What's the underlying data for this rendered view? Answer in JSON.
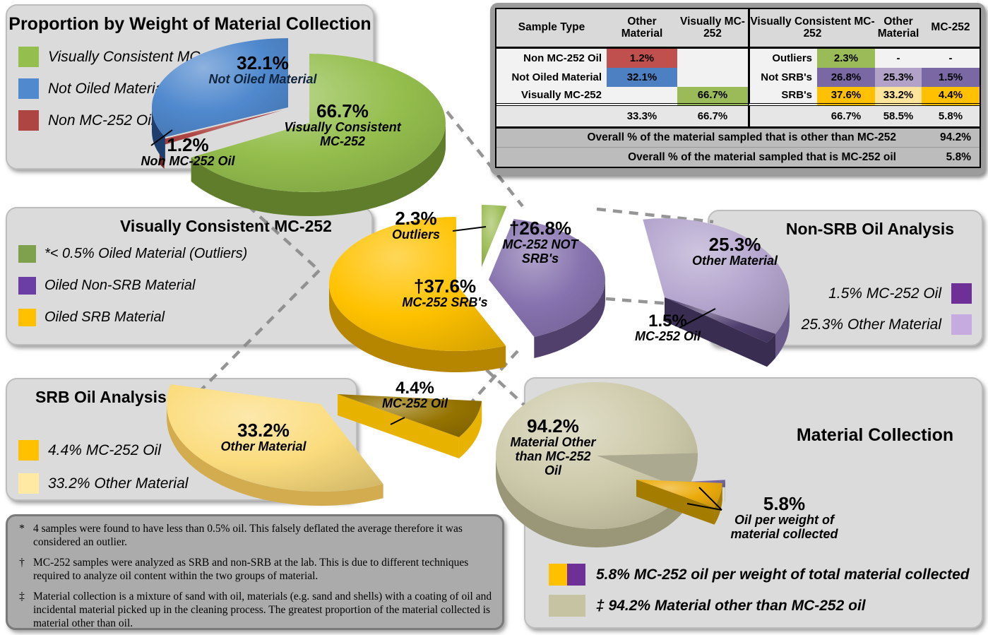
{
  "panels": {
    "proportion": {
      "title": "Proportion by Weight of Material Collection",
      "legend": [
        {
          "label": "Visually Consistent MC-252",
          "color": "#94BE4D"
        },
        {
          "label": "Not Oiled Material",
          "color": "#5089CE"
        },
        {
          "label": "Non MC-252 Oil",
          "color": "#AE4543"
        }
      ]
    },
    "visually_consistent": {
      "title": "Visually Consistent MC-252",
      "legend": [
        {
          "label": "*< 0.5% Oiled Material (Outliers)",
          "color": "#7FA04C"
        },
        {
          "label": "Oiled Non-SRB Material",
          "color": "#6B3EA5"
        },
        {
          "label": "Oiled SRB Material",
          "color": "#FFC000"
        }
      ]
    },
    "non_srb": {
      "title": "Non-SRB Oil Analysis",
      "legend": [
        {
          "label": "1.5% MC-252 Oil",
          "color": "#6E3096"
        },
        {
          "label": "25.3% Other Material",
          "color": "#C5ABE0"
        }
      ]
    },
    "srb": {
      "title": "SRB Oil Analysis",
      "legend": [
        {
          "label": "4.4% MC-252 Oil",
          "color": "#FFC000"
        },
        {
          "label": "33.2% Other Material",
          "color": "#FFE9A3"
        }
      ]
    },
    "material_collection": {
      "title": "Material Collection",
      "legend": [
        {
          "label": "5.8% MC-252 oil per weight of  total material collected",
          "colors": [
            "#FFC000",
            "#6E3096"
          ]
        },
        {
          "label": "‡ 94.2% Material other than MC-252 oil",
          "colors": [
            "#C6C3A2",
            "#C6C3A2"
          ]
        }
      ]
    },
    "footnotes": [
      {
        "symbol": "*",
        "text": "4 samples were found to have less than 0.5% oil. This falsely deflated the average therefore it was considered an outlier."
      },
      {
        "symbol": "†",
        "text": "MC-252 samples were analyzed as SRB and non-SRB at the lab. This is due to different techniques  required to analyze oil content within the two groups of material."
      },
      {
        "symbol": "‡",
        "text": "Material collection is a mixture of sand with oil, materials (e.g. sand and shells) with a coating of oil and incidental material picked up in the cleaning process. The greatest proportion of the material collected is material other than oil."
      }
    ]
  },
  "callouts": {
    "pie1_blue": {
      "pct": "32.1%",
      "name": "Not Oiled Material"
    },
    "pie1_green": {
      "pct": "66.7%",
      "name": "Visually Consistent MC-252"
    },
    "pie1_red": {
      "pct": "1.2%",
      "name": "Non MC-252 Oil"
    },
    "pie2_green": {
      "pct": "2.3%",
      "name": "Outliers"
    },
    "pie2_purple": {
      "pct": "†26.8%",
      "name": "MC-252 NOT SRB's"
    },
    "pie2_gold": {
      "pct": "†37.6%",
      "name": "MC-252 SRB's"
    },
    "pie3_light": {
      "pct": "25.3%",
      "name": "Other Material"
    },
    "pie3_dark": {
      "pct": "1.5%",
      "name": "MC-252 Oil"
    },
    "pie4_light": {
      "pct": "33.2%",
      "name": "Other Material"
    },
    "pie4_dark": {
      "pct": "4.4%",
      "name": "MC-252 Oil"
    },
    "pie5_tan": {
      "pct": "94.2%",
      "name": "Material Other than MC-252 Oil"
    },
    "pie5_gold": {
      "pct": "5.8%",
      "name": "Oil per weight of material collected"
    }
  },
  "table": {
    "headers": {
      "sample_type": "Sample Type",
      "other_material_left": "Other Material",
      "visually_mc252": "Visually MC-252",
      "visually_consistent": "Visually Consistent MC-252",
      "other_material_right": "Other Material",
      "mc252": "MC-252"
    },
    "rows_left": [
      {
        "label": "Non MC-252 Oil",
        "v1": "1.2%",
        "v1_bg": "#C0504D",
        "v2": ""
      },
      {
        "label": "Not Oiled Material",
        "v1": "32.1%",
        "v1_bg": "#4C80C2",
        "v2": ""
      },
      {
        "label": "Visually MC-252",
        "v1": "",
        "v2": "66.7%",
        "v2_bg": "#9BBB59"
      }
    ],
    "totals_left": {
      "v1": "33.3%",
      "v2": "66.7%"
    },
    "rows_right": [
      {
        "label": "Outliers",
        "v1": "2.3%",
        "v1_bg": "#9BBB59",
        "v2": "-",
        "v3": "-"
      },
      {
        "label": "Not SRB's",
        "v1": "26.8%",
        "v1_bg": "#7A68A5",
        "v2": "25.3%",
        "v2_bg": "#B3A2C7",
        "v3": "1.5%",
        "v3_bg": "#7A68A5"
      },
      {
        "label": "SRB's",
        "v1": "37.6%",
        "v1_bg": "#FFC000",
        "v2": "33.2%",
        "v2_bg": "#FFE59B",
        "v3": "4.4%",
        "v3_bg": "#FFC000"
      }
    ],
    "totals_right": {
      "v1": "66.7%",
      "v2": "58.5%",
      "v3": "5.8%"
    },
    "overall": [
      {
        "label": "Overall % of the material sampled that is other than MC-252",
        "value": "94.2%"
      },
      {
        "label": "Overall % of the material sampled that is MC-252 oil",
        "value": "5.8%"
      }
    ]
  },
  "chart_data": [
    {
      "type": "pie",
      "name": "proportion_by_weight",
      "title": "Proportion by Weight of Material Collection",
      "units": "% by weight of material collection",
      "slices": [
        {
          "label": "Visually Consistent MC-252",
          "value": 66.7,
          "color": "#94BE4D",
          "side": "#5F7D2B"
        },
        {
          "label": "Non MC-252 Oil",
          "value": 1.2,
          "color": "#AE4543",
          "side": "#6E2A29"
        },
        {
          "label": "Not Oiled Material",
          "value": 32.1,
          "color": "#5089CE",
          "side": "#1F3E6E"
        }
      ]
    },
    {
      "type": "pie",
      "name": "visually_consistent_mc252_detail",
      "title": "Visually Consistent MC-252",
      "slices": [
        {
          "label": "Outliers (< 0.5% Oiled Material)",
          "value": 2.3,
          "color": "#9FBF5A",
          "side": "#668032"
        },
        {
          "label": "MC-252 NOT SRB's",
          "value": 26.8,
          "color": "#8672AE",
          "side": "#51406C"
        },
        {
          "label": "MC-252 SRB's",
          "value": 37.6,
          "color": "#FFC200",
          "side": "#B78600"
        }
      ]
    },
    {
      "type": "pie",
      "name": "non_srb_oil_analysis",
      "title": "Non-SRB Oil Analysis",
      "slices": [
        {
          "label": "Other Material",
          "value": 25.3,
          "color": "#B4A5CE",
          "side": "#695A8A"
        },
        {
          "label": "MC-252 Oil",
          "value": 1.5,
          "color": "#4F3F6F",
          "side": "#3A2D52"
        }
      ]
    },
    {
      "type": "pie",
      "name": "srb_oil_analysis",
      "title": "SRB Oil Analysis",
      "slices": [
        {
          "label": "Other Material",
          "value": 33.2,
          "color": "#FBDC7D",
          "side": "#D2AC4E"
        },
        {
          "label": "MC-252 Oil",
          "value": 4.4,
          "color": "#957300",
          "side": "#E7B200"
        }
      ]
    },
    {
      "type": "pie",
      "name": "material_collection",
      "title": "Material Collection",
      "slices": [
        {
          "label": "Material other than MC-252 oil",
          "value": 94.2,
          "color": "#CDCAAA",
          "side": "#9A9779"
        },
        {
          "label": "MC-252 oil per weight of total material collected",
          "value": 5.8,
          "color": "#ECAB0A",
          "side": "#A37C00",
          "color2": "#7868A6",
          "side2": "#4E4273"
        }
      ]
    }
  ]
}
